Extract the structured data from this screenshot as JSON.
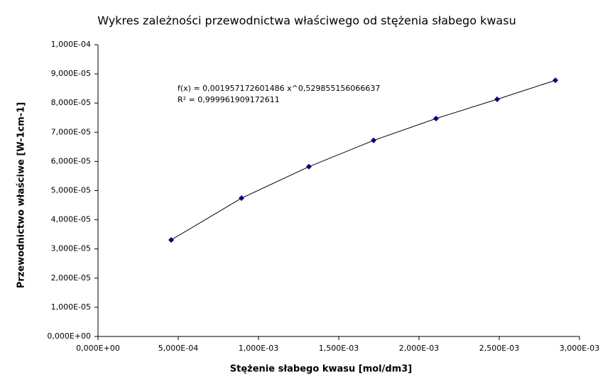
{
  "chart_data": {
    "type": "scatter",
    "title": "Wykres zależności przewodnictwa właściwego od stężenia słabego kwasu",
    "x_label": "Stężenie słabego kwasu [mol/dm3]",
    "y_label": "Przewodnictwo właściwe [W-1cm-1]",
    "annotations": [
      "f(x) = 0,001957172601486 x^0,529855156066637",
      "R² = 0,999961909172611"
    ],
    "x": [
      0.000456,
      0.000894,
      0.001314,
      0.001717,
      0.002106,
      0.002487,
      0.00285
    ],
    "series": [
      {
        "color": "#000080",
        "values": [
          3.31e-05,
          4.74e-05,
          5.82e-05,
          6.72e-05,
          7.47e-05,
          8.13e-05,
          8.78e-05
        ]
      }
    ],
    "trendline_color": "#000000",
    "xlim": [
      0,
      0.003
    ],
    "ylim": [
      0,
      0.0001
    ],
    "xticks": [
      {
        "value": 0,
        "label": "0,000E+00"
      },
      {
        "value": 0.0005,
        "label": "5,000E-04"
      },
      {
        "value": 0.001,
        "label": "1,000E-03"
      },
      {
        "value": 0.0015,
        "label": "1,500E-03"
      },
      {
        "value": 0.002,
        "label": "2,000E-03"
      },
      {
        "value": 0.0025,
        "label": "2,500E-03"
      },
      {
        "value": 0.003,
        "label": "3,000E-03"
      }
    ],
    "yticks": [
      {
        "value": 0,
        "label": "0,000E+00"
      },
      {
        "value": 1e-05,
        "label": "1,000E-05"
      },
      {
        "value": 2e-05,
        "label": "2,000E-05"
      },
      {
        "value": 3e-05,
        "label": "3,000E-05"
      },
      {
        "value": 4e-05,
        "label": "4,000E-05"
      },
      {
        "value": 5e-05,
        "label": "5,000E-05"
      },
      {
        "value": 6e-05,
        "label": "6,000E-05"
      },
      {
        "value": 7e-05,
        "label": "7,000E-05"
      },
      {
        "value": 8e-05,
        "label": "8,000E-05"
      },
      {
        "value": 9e-05,
        "label": "9,000E-05"
      },
      {
        "value": 0.0001,
        "label": "1,000E-04"
      }
    ],
    "grid": false
  }
}
